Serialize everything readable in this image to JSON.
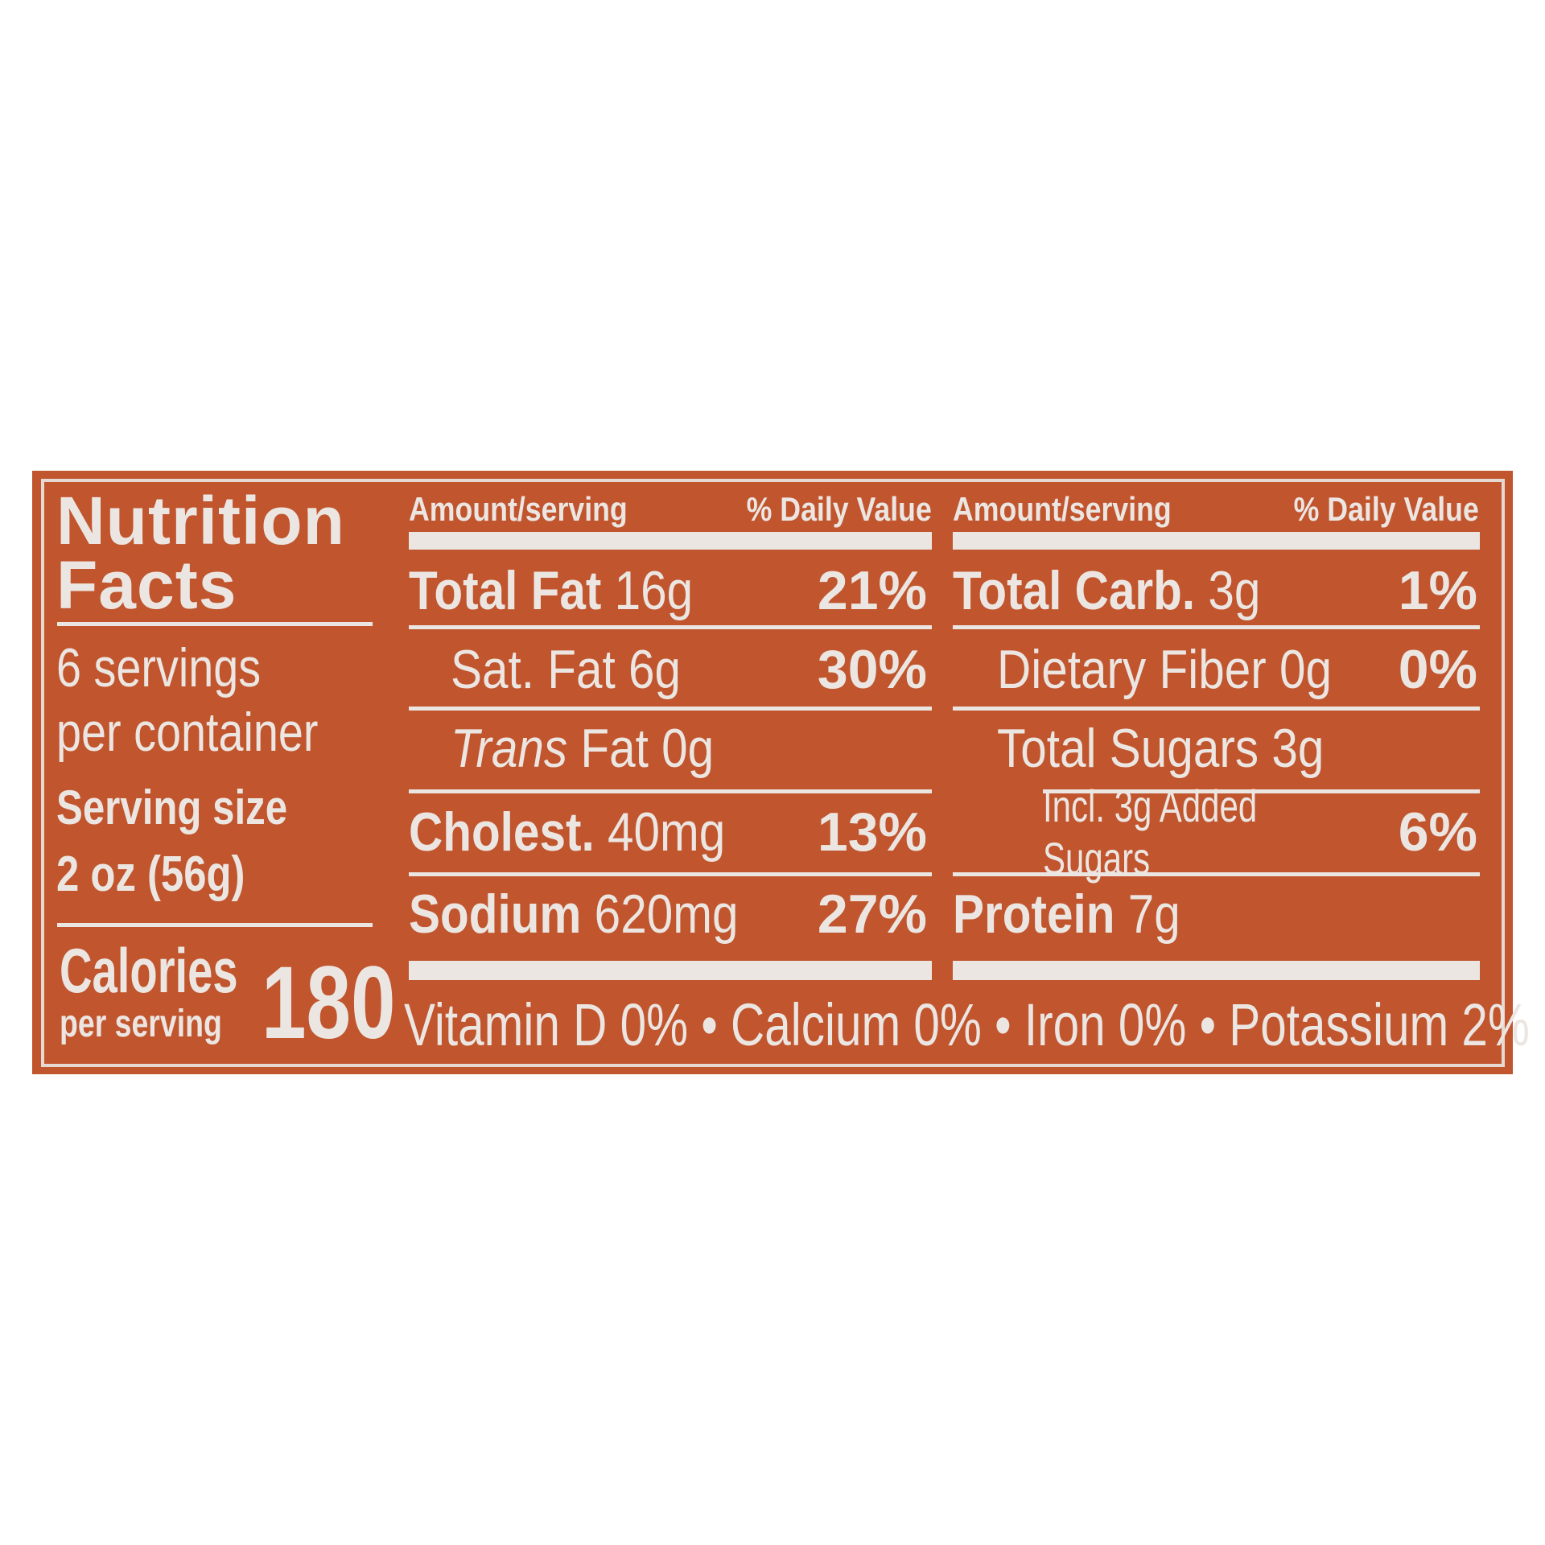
{
  "label": {
    "title_line1": "Nutrition",
    "title_line2": "Facts",
    "servings_line1": "6 servings",
    "servings_line2": "per container",
    "serving_size_label": "Serving size",
    "serving_size_value": "2 oz (56g)",
    "calories_label": "Calories",
    "calories_sub": "per serving",
    "calories_value": "180",
    "header_amount": "Amount/serving",
    "header_dv": "% Daily Value",
    "left_rows": [
      {
        "name": "Total Fat",
        "amount": "16g",
        "dv": "21%"
      },
      {
        "name": "Sat. Fat",
        "amount": "6g",
        "dv": "30%"
      },
      {
        "name": "Trans",
        "name2": "Fat 0g",
        "dv": ""
      },
      {
        "name": "Cholest.",
        "amount": "40mg",
        "dv": "13%"
      },
      {
        "name": "Sodium",
        "amount": "620mg",
        "dv": "27%"
      }
    ],
    "right_rows": [
      {
        "name": "Total Carb.",
        "amount": "3g",
        "dv": "1%"
      },
      {
        "name": "Dietary Fiber 0g",
        "dv": "0%"
      },
      {
        "name": "Total Sugars 3g",
        "dv": ""
      },
      {
        "name": "Incl. 3g Added Sugars",
        "dv": "6%"
      },
      {
        "name": "Protein",
        "amount": "7g",
        "dv": ""
      }
    ],
    "footer": "Vitamin D 0% • Calcium 0% • Iron 0% • Potassium 2%"
  },
  "colors": {
    "background": "#c0552e",
    "text": "#ece6e2",
    "page": "#ffffff"
  }
}
